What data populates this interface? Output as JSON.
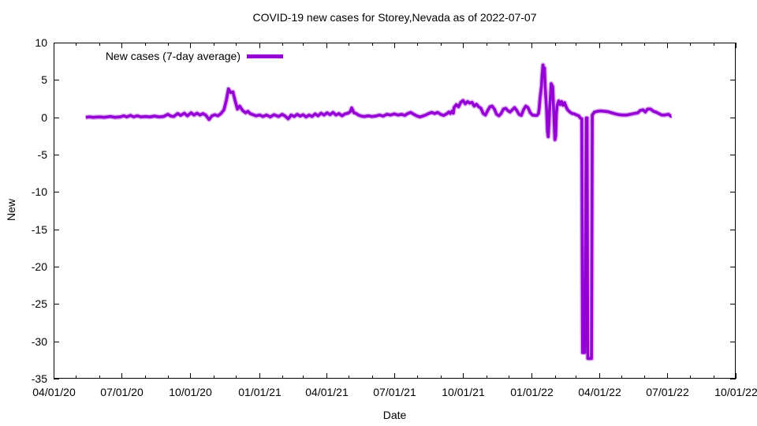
{
  "page": {
    "background": "#ffffff"
  },
  "chart_data": {
    "type": "line",
    "title": "COVID-19 new cases for Storey,Nevada as of 2022-07-07",
    "xlabel": "Date",
    "ylabel": "New",
    "grid": false,
    "legend": {
      "position": "top-left-inside",
      "entries": [
        {
          "label": "New cases (7-day average)",
          "color": "#9400D3"
        }
      ]
    },
    "axes": {
      "x_tick_labels": [
        "04/01/20",
        "07/01/20",
        "10/01/20",
        "01/01/21",
        "04/01/21",
        "07/01/21",
        "10/01/21",
        "01/01/22",
        "04/01/22",
        "07/01/22",
        "10/01/22"
      ],
      "x_minor_ticks": "monthly",
      "y_tick_labels": [
        "10",
        "5",
        "0",
        "-5",
        "-10",
        "-15",
        "-20",
        "-25",
        "-30",
        "-35"
      ],
      "ylim": [
        -35,
        10
      ],
      "y_tick_step": 5,
      "frame": "closed box with mirrored inward ticks"
    },
    "series": [
      {
        "name": "New cases (7-day average)",
        "color": "#9400D3",
        "points": [
          [
            "2020-05-14",
            0
          ],
          [
            "2020-05-19",
            0.05
          ],
          [
            "2020-05-24",
            0
          ],
          [
            "2020-06-01",
            0.05
          ],
          [
            "2020-06-08",
            0
          ],
          [
            "2020-06-16",
            0.1
          ],
          [
            "2020-06-22",
            0
          ],
          [
            "2020-06-29",
            0.05
          ],
          [
            "2020-07-04",
            0.2
          ],
          [
            "2020-07-08",
            0.05
          ],
          [
            "2020-07-13",
            0.25
          ],
          [
            "2020-07-17",
            0.05
          ],
          [
            "2020-07-22",
            0.2
          ],
          [
            "2020-07-27",
            0.05
          ],
          [
            "2020-08-02",
            0.1
          ],
          [
            "2020-08-08",
            0.05
          ],
          [
            "2020-08-14",
            0.15
          ],
          [
            "2020-08-20",
            0.05
          ],
          [
            "2020-08-26",
            0.1
          ],
          [
            "2020-09-01",
            0.4
          ],
          [
            "2020-09-05",
            0.15
          ],
          [
            "2020-09-09",
            0.1
          ],
          [
            "2020-09-14",
            0.5
          ],
          [
            "2020-09-18",
            0.25
          ],
          [
            "2020-09-23",
            0.55
          ],
          [
            "2020-09-27",
            0.2
          ],
          [
            "2020-10-02",
            0.6
          ],
          [
            "2020-10-06",
            0.3
          ],
          [
            "2020-10-10",
            0.55
          ],
          [
            "2020-10-14",
            0.3
          ],
          [
            "2020-10-18",
            0.5
          ],
          [
            "2020-10-22",
            0.25
          ],
          [
            "2020-10-26",
            -0.3
          ],
          [
            "2020-10-30",
            0.2
          ],
          [
            "2020-11-03",
            0.35
          ],
          [
            "2020-11-07",
            0.2
          ],
          [
            "2020-11-11",
            0.5
          ],
          [
            "2020-11-15",
            1.0
          ],
          [
            "2020-11-18",
            2.2
          ],
          [
            "2020-11-21",
            3.8
          ],
          [
            "2020-11-24",
            3.3
          ],
          [
            "2020-11-27",
            3.4
          ],
          [
            "2020-11-30",
            2.2
          ],
          [
            "2020-12-03",
            1.1
          ],
          [
            "2020-12-06",
            1.5
          ],
          [
            "2020-12-10",
            0.9
          ],
          [
            "2020-12-14",
            0.6
          ],
          [
            "2020-12-17",
            0.8
          ],
          [
            "2020-12-20",
            0.5
          ],
          [
            "2020-12-24",
            0.35
          ],
          [
            "2020-12-28",
            0.2
          ],
          [
            "2021-01-02",
            0.3
          ],
          [
            "2021-01-06",
            0.1
          ],
          [
            "2021-01-11",
            0.3
          ],
          [
            "2021-01-16",
            0.05
          ],
          [
            "2021-01-21",
            0.35
          ],
          [
            "2021-01-27",
            0.1
          ],
          [
            "2021-02-01",
            0.4
          ],
          [
            "2021-02-05",
            0.15
          ],
          [
            "2021-02-09",
            -0.2
          ],
          [
            "2021-02-13",
            0.3
          ],
          [
            "2021-02-17",
            0.1
          ],
          [
            "2021-02-21",
            0.4
          ],
          [
            "2021-02-25",
            0.15
          ],
          [
            "2021-03-01",
            0.35
          ],
          [
            "2021-03-05",
            0.05
          ],
          [
            "2021-03-09",
            0.3
          ],
          [
            "2021-03-13",
            0.1
          ],
          [
            "2021-03-17",
            0.45
          ],
          [
            "2021-03-21",
            0.2
          ],
          [
            "2021-03-25",
            0.55
          ],
          [
            "2021-03-29",
            0.3
          ],
          [
            "2021-04-02",
            0.6
          ],
          [
            "2021-04-06",
            0.35
          ],
          [
            "2021-04-10",
            0.65
          ],
          [
            "2021-04-14",
            0.3
          ],
          [
            "2021-04-18",
            0.5
          ],
          [
            "2021-04-22",
            0.2
          ],
          [
            "2021-04-26",
            0.45
          ],
          [
            "2021-04-30",
            0.55
          ],
          [
            "2021-05-03",
            0.75
          ],
          [
            "2021-05-05",
            1.25
          ],
          [
            "2021-05-08",
            0.6
          ],
          [
            "2021-05-11",
            0.5
          ],
          [
            "2021-05-14",
            0.3
          ],
          [
            "2021-05-18",
            0.15
          ],
          [
            "2021-05-22",
            0.1
          ],
          [
            "2021-05-27",
            0.2
          ],
          [
            "2021-06-01",
            0.1
          ],
          [
            "2021-06-06",
            0.15
          ],
          [
            "2021-06-11",
            0.3
          ],
          [
            "2021-06-16",
            0.15
          ],
          [
            "2021-06-21",
            0.4
          ],
          [
            "2021-06-26",
            0.3
          ],
          [
            "2021-07-01",
            0.45
          ],
          [
            "2021-07-06",
            0.3
          ],
          [
            "2021-07-11",
            0.4
          ],
          [
            "2021-07-15",
            0.25
          ],
          [
            "2021-07-19",
            0.5
          ],
          [
            "2021-07-23",
            0.65
          ],
          [
            "2021-07-27",
            0.4
          ],
          [
            "2021-07-31",
            0.2
          ],
          [
            "2021-08-04",
            0.05
          ],
          [
            "2021-08-08",
            0.15
          ],
          [
            "2021-08-12",
            0.3
          ],
          [
            "2021-08-16",
            0.5
          ],
          [
            "2021-08-20",
            0.65
          ],
          [
            "2021-08-24",
            0.5
          ],
          [
            "2021-08-28",
            0.65
          ],
          [
            "2021-09-01",
            0.4
          ],
          [
            "2021-09-05",
            0.25
          ],
          [
            "2021-09-09",
            0.45
          ],
          [
            "2021-09-12",
            0.7
          ],
          [
            "2021-09-14",
            0.5
          ],
          [
            "2021-09-16",
            0.8
          ],
          [
            "2021-09-18",
            0.55
          ],
          [
            "2021-09-19",
            1.3
          ],
          [
            "2021-09-22",
            1.7
          ],
          [
            "2021-09-25",
            1.4
          ],
          [
            "2021-09-28",
            2.0
          ],
          [
            "2021-10-01",
            2.25
          ],
          [
            "2021-10-04",
            1.8
          ],
          [
            "2021-10-07",
            2.1
          ],
          [
            "2021-10-10",
            1.9
          ],
          [
            "2021-10-13",
            2.0
          ],
          [
            "2021-10-16",
            1.5
          ],
          [
            "2021-10-19",
            1.75
          ],
          [
            "2021-10-22",
            1.4
          ],
          [
            "2021-10-25",
            1.2
          ],
          [
            "2021-10-28",
            0.5
          ],
          [
            "2021-10-31",
            0.3
          ],
          [
            "2021-11-03",
            0.9
          ],
          [
            "2021-11-06",
            1.4
          ],
          [
            "2021-11-09",
            1.5
          ],
          [
            "2021-11-12",
            1.1
          ],
          [
            "2021-11-15",
            0.4
          ],
          [
            "2021-11-18",
            0.2
          ],
          [
            "2021-11-21",
            0.5
          ],
          [
            "2021-11-24",
            1.1
          ],
          [
            "2021-11-27",
            1.2
          ],
          [
            "2021-11-30",
            0.9
          ],
          [
            "2021-12-03",
            0.7
          ],
          [
            "2021-12-06",
            1.0
          ],
          [
            "2021-12-09",
            1.3
          ],
          [
            "2021-12-12",
            0.9
          ],
          [
            "2021-12-15",
            0.4
          ],
          [
            "2021-12-18",
            0.25
          ],
          [
            "2021-12-21",
            1.0
          ],
          [
            "2021-12-24",
            1.5
          ],
          [
            "2021-12-27",
            1.3
          ],
          [
            "2021-12-30",
            0.6
          ],
          [
            "2022-01-02",
            0.3
          ],
          [
            "2022-01-05",
            0.25
          ],
          [
            "2022-01-08",
            0.25
          ],
          [
            "2022-01-10",
            0.5
          ],
          [
            "2022-01-11",
            1.2
          ],
          [
            "2022-01-12",
            2.5
          ],
          [
            "2022-01-14",
            4.2
          ],
          [
            "2022-01-15",
            5.8
          ],
          [
            "2022-01-16",
            7.0
          ],
          [
            "2022-01-17",
            6.3
          ],
          [
            "2022-01-18",
            6.6
          ],
          [
            "2022-01-19",
            4.0
          ],
          [
            "2022-01-21",
            0.8
          ],
          [
            "2022-01-22",
            -1.8
          ],
          [
            "2022-01-23",
            -2.6
          ],
          [
            "2022-01-24",
            -1.0
          ],
          [
            "2022-01-25",
            1.2
          ],
          [
            "2022-01-27",
            4.5
          ],
          [
            "2022-01-29",
            4.1
          ],
          [
            "2022-01-30",
            1.8
          ],
          [
            "2022-01-31",
            -0.8
          ],
          [
            "2022-02-01",
            -3.0
          ],
          [
            "2022-02-02",
            -2.5
          ],
          [
            "2022-02-03",
            0.5
          ],
          [
            "2022-02-04",
            1.6
          ],
          [
            "2022-02-06",
            2.2
          ],
          [
            "2022-02-08",
            1.7
          ],
          [
            "2022-02-10",
            2.1
          ],
          [
            "2022-02-12",
            1.6
          ],
          [
            "2022-02-14",
            1.95
          ],
          [
            "2022-02-16",
            1.4
          ],
          [
            "2022-02-18",
            1.0
          ],
          [
            "2022-02-21",
            0.7
          ],
          [
            "2022-02-24",
            0.5
          ],
          [
            "2022-02-27",
            0.45
          ],
          [
            "2022-03-02",
            0.3
          ],
          [
            "2022-03-05",
            0.2
          ],
          [
            "2022-03-07",
            -0.1
          ],
          [
            "2022-03-09",
            -0.2
          ],
          [
            "2022-03-10",
            -31.5
          ],
          [
            "2022-03-13",
            -31.5
          ],
          [
            "2022-03-15",
            -0.1
          ],
          [
            "2022-03-16",
            -0.1
          ],
          [
            "2022-03-17",
            -32.3
          ],
          [
            "2022-03-22",
            -32.3
          ],
          [
            "2022-03-23",
            0.3
          ],
          [
            "2022-03-26",
            0.7
          ],
          [
            "2022-03-30",
            0.8
          ],
          [
            "2022-04-03",
            0.85
          ],
          [
            "2022-04-08",
            0.8
          ],
          [
            "2022-04-13",
            0.75
          ],
          [
            "2022-04-18",
            0.6
          ],
          [
            "2022-04-23",
            0.45
          ],
          [
            "2022-04-28",
            0.35
          ],
          [
            "2022-05-03",
            0.3
          ],
          [
            "2022-05-08",
            0.3
          ],
          [
            "2022-05-13",
            0.4
          ],
          [
            "2022-05-18",
            0.5
          ],
          [
            "2022-05-23",
            0.6
          ],
          [
            "2022-05-26",
            0.9
          ],
          [
            "2022-05-30",
            1.0
          ],
          [
            "2022-06-02",
            0.7
          ],
          [
            "2022-06-05",
            1.1
          ],
          [
            "2022-06-09",
            1.1
          ],
          [
            "2022-06-13",
            0.8
          ],
          [
            "2022-06-16",
            0.7
          ],
          [
            "2022-06-20",
            0.5
          ],
          [
            "2022-06-24",
            0.3
          ],
          [
            "2022-06-28",
            0.3
          ],
          [
            "2022-07-03",
            0.4
          ],
          [
            "2022-07-06",
            0.15
          ],
          [
            "2022-07-07",
            0.2
          ]
        ]
      }
    ]
  }
}
